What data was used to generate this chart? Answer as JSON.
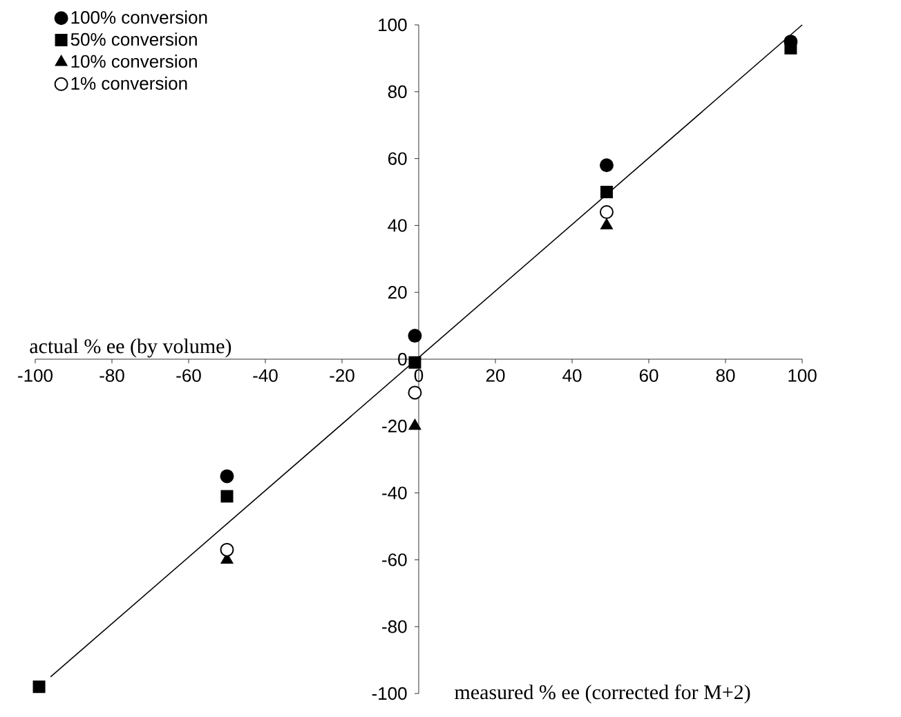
{
  "chart_data": {
    "type": "scatter",
    "xlabel": "measured % ee (corrected for M+2)",
    "ylabel": "actual % ee (by volume)",
    "xlim": [
      -100,
      100
    ],
    "ylim": [
      -100,
      100
    ],
    "xticks": [
      -100,
      -80,
      -60,
      -40,
      -20,
      0,
      20,
      40,
      60,
      80,
      100
    ],
    "yticks": [
      -100,
      -80,
      -60,
      -40,
      -20,
      0,
      20,
      40,
      60,
      80,
      100
    ],
    "legend": "top left",
    "series": [
      {
        "name": "100% conversion",
        "color": "#000000",
        "marker": "circle",
        "x": [
          -50,
          -1,
          49,
          97
        ],
        "values": [
          -35,
          7,
          58,
          95
        ]
      },
      {
        "name": "50% conversion",
        "color": "#000000",
        "marker": "square",
        "x": [
          -99,
          -50,
          -1,
          49,
          97
        ],
        "values": [
          -98,
          -41,
          -1,
          50,
          93
        ]
      },
      {
        "name": "10% conversion",
        "color": "#000000",
        "marker": "triangle",
        "x": [
          -50,
          -1,
          49
        ],
        "values": [
          -60,
          -20,
          40
        ]
      },
      {
        "name": "1% conversion",
        "color": "#ffffff",
        "marker": "circle",
        "x": [
          -50,
          -1,
          49
        ],
        "values": [
          -57,
          -10,
          44
        ]
      },
      {
        "type": "line",
        "color": "#000000",
        "x": [
          -96,
          100
        ],
        "values": [
          -95,
          100
        ]
      }
    ]
  }
}
